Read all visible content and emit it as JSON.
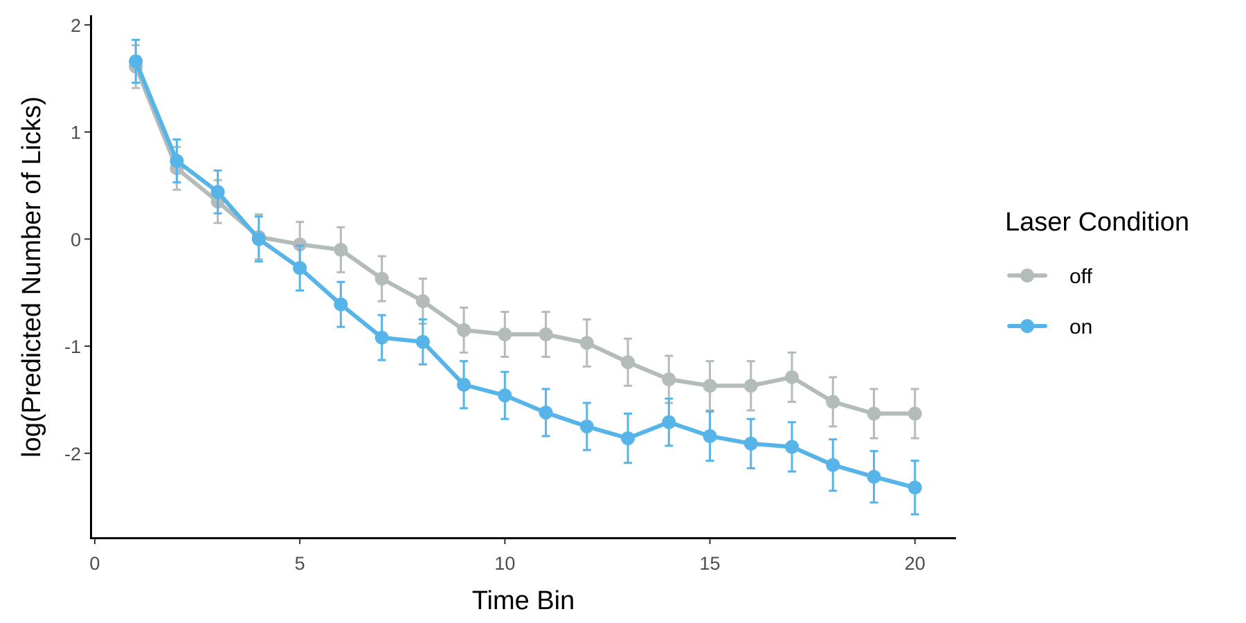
{
  "chart_data": {
    "type": "line",
    "xlabel": "Time Bin",
    "ylabel": "log(Predicted Number of Licks)",
    "xlim": [
      -0.1,
      21
    ],
    "ylim": [
      -2.79,
      2.09
    ],
    "xticks": [
      0,
      5,
      10,
      15,
      20
    ],
    "xtick_labels": [
      "0",
      "5",
      "10",
      "15",
      "20"
    ],
    "yticks": [
      -2,
      -1,
      0,
      1,
      2
    ],
    "ytick_labels": [
      "-2",
      "-1",
      "0",
      "1",
      "2"
    ],
    "grid": false,
    "legend": {
      "title": "Laser Condition",
      "position": "right"
    },
    "x": [
      1,
      2,
      3,
      4,
      5,
      6,
      7,
      8,
      9,
      10,
      11,
      12,
      13,
      14,
      15,
      16,
      17,
      18,
      19,
      20
    ],
    "series": [
      {
        "name": "off",
        "color": "#b3bcba",
        "values": [
          1.61,
          0.66,
          0.35,
          0.02,
          -0.05,
          -0.1,
          -0.37,
          -0.58,
          -0.85,
          -0.89,
          -0.89,
          -0.97,
          -1.15,
          -1.31,
          -1.37,
          -1.37,
          -1.29,
          -1.52,
          -1.63,
          -1.63
        ],
        "error": [
          0.2,
          0.2,
          0.2,
          0.21,
          0.21,
          0.21,
          0.21,
          0.21,
          0.21,
          0.21,
          0.21,
          0.22,
          0.22,
          0.22,
          0.23,
          0.23,
          0.23,
          0.23,
          0.23,
          0.23
        ]
      },
      {
        "name": "on",
        "color": "#56b4e9",
        "values": [
          1.66,
          0.73,
          0.44,
          0.0,
          -0.27,
          -0.61,
          -0.92,
          -0.96,
          -1.36,
          -1.46,
          -1.62,
          -1.75,
          -1.86,
          -1.71,
          -1.84,
          -1.91,
          -1.94,
          -2.11,
          -2.22,
          -2.32
        ],
        "error": [
          0.2,
          0.2,
          0.2,
          0.21,
          0.21,
          0.21,
          0.21,
          0.21,
          0.22,
          0.22,
          0.22,
          0.22,
          0.23,
          0.22,
          0.23,
          0.23,
          0.23,
          0.24,
          0.24,
          0.25
        ]
      }
    ]
  }
}
